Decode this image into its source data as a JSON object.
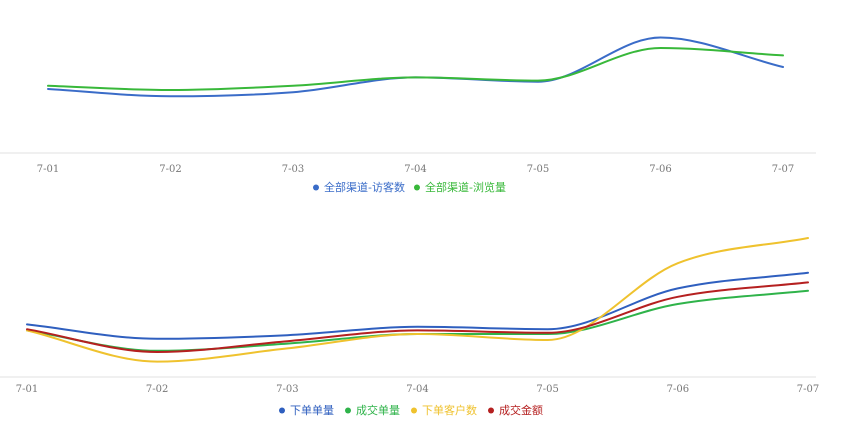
{
  "chart_data": [
    {
      "type": "line",
      "x": [
        "7-01",
        "7-02",
        "7-03",
        "7-04",
        "7-05",
        "7-06",
        "7-07"
      ],
      "series": [
        {
          "name": "全部渠道-访客数",
          "color": "#3a6cc8",
          "values": [
            40,
            33,
            37,
            51,
            47,
            89,
            61
          ]
        },
        {
          "name": "全部渠道-浏览量",
          "color": "#38b83a",
          "values": [
            43,
            39,
            43,
            51,
            48,
            79,
            72
          ]
        }
      ],
      "ylim": [
        0,
        100
      ],
      "legend_position": "bottom",
      "grid": false
    },
    {
      "type": "line",
      "x": [
        "7-01",
        "7-02",
        "7-03",
        "7-04",
        "7-05",
        "7-06",
        "7-07"
      ],
      "series": [
        {
          "name": "下单单量",
          "color": "#2f5fbf",
          "values": [
            43,
            31,
            34,
            41,
            39,
            73,
            86
          ]
        },
        {
          "name": "成交单量",
          "color": "#2fb34a",
          "values": [
            38,
            21,
            27,
            35,
            35,
            60,
            71
          ]
        },
        {
          "name": "下单客户数",
          "color": "#efc22e",
          "values": [
            38,
            12,
            23,
            35,
            30,
            94,
            115
          ]
        },
        {
          "name": "成交金额",
          "color": "#b52020",
          "values": [
            39,
            20,
            29,
            38,
            36,
            66,
            78
          ]
        }
      ],
      "ylim": [
        0,
        130
      ],
      "legend_position": "bottom",
      "grid": false
    }
  ]
}
